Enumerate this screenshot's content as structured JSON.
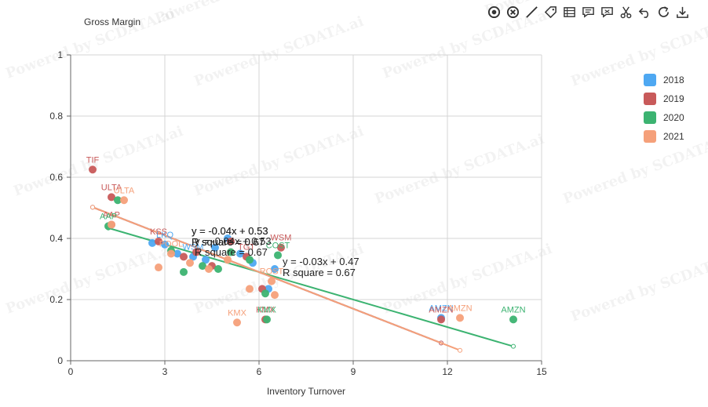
{
  "watermark": "Powered by SCDATA.ai",
  "toolbar": [
    {
      "name": "target-icon",
      "title": "Data Zoom"
    },
    {
      "name": "close-circle-icon",
      "title": "Reset Zoom"
    },
    {
      "name": "line-icon",
      "title": "Line"
    },
    {
      "name": "tag-icon",
      "title": "Label"
    },
    {
      "name": "table-icon",
      "title": "Data View"
    },
    {
      "name": "comment-icon",
      "title": "Comment"
    },
    {
      "name": "crop-icon",
      "title": "Crop"
    },
    {
      "name": "scissors-icon",
      "title": "Cut"
    },
    {
      "name": "undo-icon",
      "title": "Undo"
    },
    {
      "name": "refresh-icon",
      "title": "Restore"
    },
    {
      "name": "download-icon",
      "title": "Save as Image"
    }
  ],
  "chart_data": {
    "type": "scatter",
    "title": "",
    "xlabel": "Inventory Turnover",
    "ylabel": "Gross Margin",
    "xlim": [
      0,
      15
    ],
    "ylim": [
      0,
      1
    ],
    "xticks": [
      0,
      3,
      6,
      9,
      12,
      15
    ],
    "yticks": [
      0,
      0.2,
      0.4,
      0.6,
      0.8,
      1
    ],
    "grid": true,
    "legend_position": "right",
    "series": [
      {
        "name": "2018",
        "color": "#4ea8f2",
        "points": [
          {
            "x": 2.6,
            "y": 0.385,
            "label": ""
          },
          {
            "x": 3.0,
            "y": 0.38,
            "label": "LKQ"
          },
          {
            "x": 3.4,
            "y": 0.35,
            "label": ""
          },
          {
            "x": 3.9,
            "y": 0.34,
            "label": "WSM"
          },
          {
            "x": 4.3,
            "y": 0.33,
            "label": ""
          },
          {
            "x": 4.6,
            "y": 0.37,
            "label": ""
          },
          {
            "x": 5.0,
            "y": 0.4,
            "label": ""
          },
          {
            "x": 5.4,
            "y": 0.35,
            "label": ""
          },
          {
            "x": 5.8,
            "y": 0.32,
            "label": ""
          },
          {
            "x": 6.3,
            "y": 0.235,
            "label": ""
          },
          {
            "x": 6.5,
            "y": 0.3,
            "label": ""
          },
          {
            "x": 11.8,
            "y": 0.14,
            "label": "AMZN"
          }
        ],
        "trend": {
          "slope": -0.04,
          "intercept": 0.53,
          "r2": 0.67,
          "x": [
            0.7,
            11.8
          ]
        }
      },
      {
        "name": "2019",
        "color": "#c85a5a",
        "points": [
          {
            "x": 0.7,
            "y": 0.625,
            "label": "TIF"
          },
          {
            "x": 1.3,
            "y": 0.535,
            "label": "ULTA"
          },
          {
            "x": 1.3,
            "y": 0.445,
            "label": "AAP"
          },
          {
            "x": 2.8,
            "y": 0.39,
            "label": "KSS"
          },
          {
            "x": 3.6,
            "y": 0.34,
            "label": ""
          },
          {
            "x": 4.0,
            "y": 0.355,
            "label": ""
          },
          {
            "x": 4.5,
            "y": 0.31,
            "label": ""
          },
          {
            "x": 5.1,
            "y": 0.39,
            "label": ""
          },
          {
            "x": 5.6,
            "y": 0.34,
            "label": "TGT"
          },
          {
            "x": 6.1,
            "y": 0.235,
            "label": ""
          },
          {
            "x": 6.7,
            "y": 0.37,
            "label": "WSM"
          },
          {
            "x": 6.2,
            "y": 0.135,
            "label": "KMX"
          },
          {
            "x": 11.8,
            "y": 0.135,
            "label": "AMZN"
          }
        ],
        "trend": {
          "slope": -0.04,
          "intercept": 0.53,
          "r2": 0.67,
          "x": [
            0.7,
            11.8
          ]
        }
      },
      {
        "name": "2020",
        "color": "#3cb371",
        "points": [
          {
            "x": 1.2,
            "y": 0.44,
            "label": "AAP"
          },
          {
            "x": 1.5,
            "y": 0.525,
            "label": ""
          },
          {
            "x": 3.2,
            "y": 0.36,
            "label": ""
          },
          {
            "x": 3.6,
            "y": 0.29,
            "label": ""
          },
          {
            "x": 4.2,
            "y": 0.31,
            "label": ""
          },
          {
            "x": 4.7,
            "y": 0.3,
            "label": ""
          },
          {
            "x": 5.1,
            "y": 0.355,
            "label": ""
          },
          {
            "x": 5.7,
            "y": 0.33,
            "label": ""
          },
          {
            "x": 6.2,
            "y": 0.22,
            "label": ""
          },
          {
            "x": 6.6,
            "y": 0.345,
            "label": "COST"
          },
          {
            "x": 6.25,
            "y": 0.135,
            "label": "KMX"
          },
          {
            "x": 14.1,
            "y": 0.135,
            "label": "AMZN"
          }
        ],
        "trend": {
          "slope": -0.03,
          "intercept": 0.47,
          "r2": 0.67,
          "x": [
            1.2,
            14.1
          ]
        }
      },
      {
        "name": "2021",
        "color": "#f5a07a",
        "points": [
          {
            "x": 1.7,
            "y": 0.525,
            "label": "ULTA"
          },
          {
            "x": 1.3,
            "y": 0.445,
            "label": ""
          },
          {
            "x": 2.8,
            "y": 0.305,
            "label": ""
          },
          {
            "x": 3.2,
            "y": 0.35,
            "label": "POOL"
          },
          {
            "x": 3.8,
            "y": 0.32,
            "label": ""
          },
          {
            "x": 4.4,
            "y": 0.3,
            "label": ""
          },
          {
            "x": 5.0,
            "y": 0.33,
            "label": ""
          },
          {
            "x": 5.3,
            "y": 0.125,
            "label": "KMX"
          },
          {
            "x": 5.7,
            "y": 0.235,
            "label": ""
          },
          {
            "x": 6.4,
            "y": 0.26,
            "label": "ROST"
          },
          {
            "x": 6.5,
            "y": 0.215,
            "label": ""
          },
          {
            "x": 12.4,
            "y": 0.14,
            "label": "AMZN"
          }
        ],
        "trend": {
          "slope": -0.04,
          "intercept": 0.53,
          "r2": 0.67,
          "x": [
            0.7,
            12.4
          ]
        }
      }
    ]
  }
}
